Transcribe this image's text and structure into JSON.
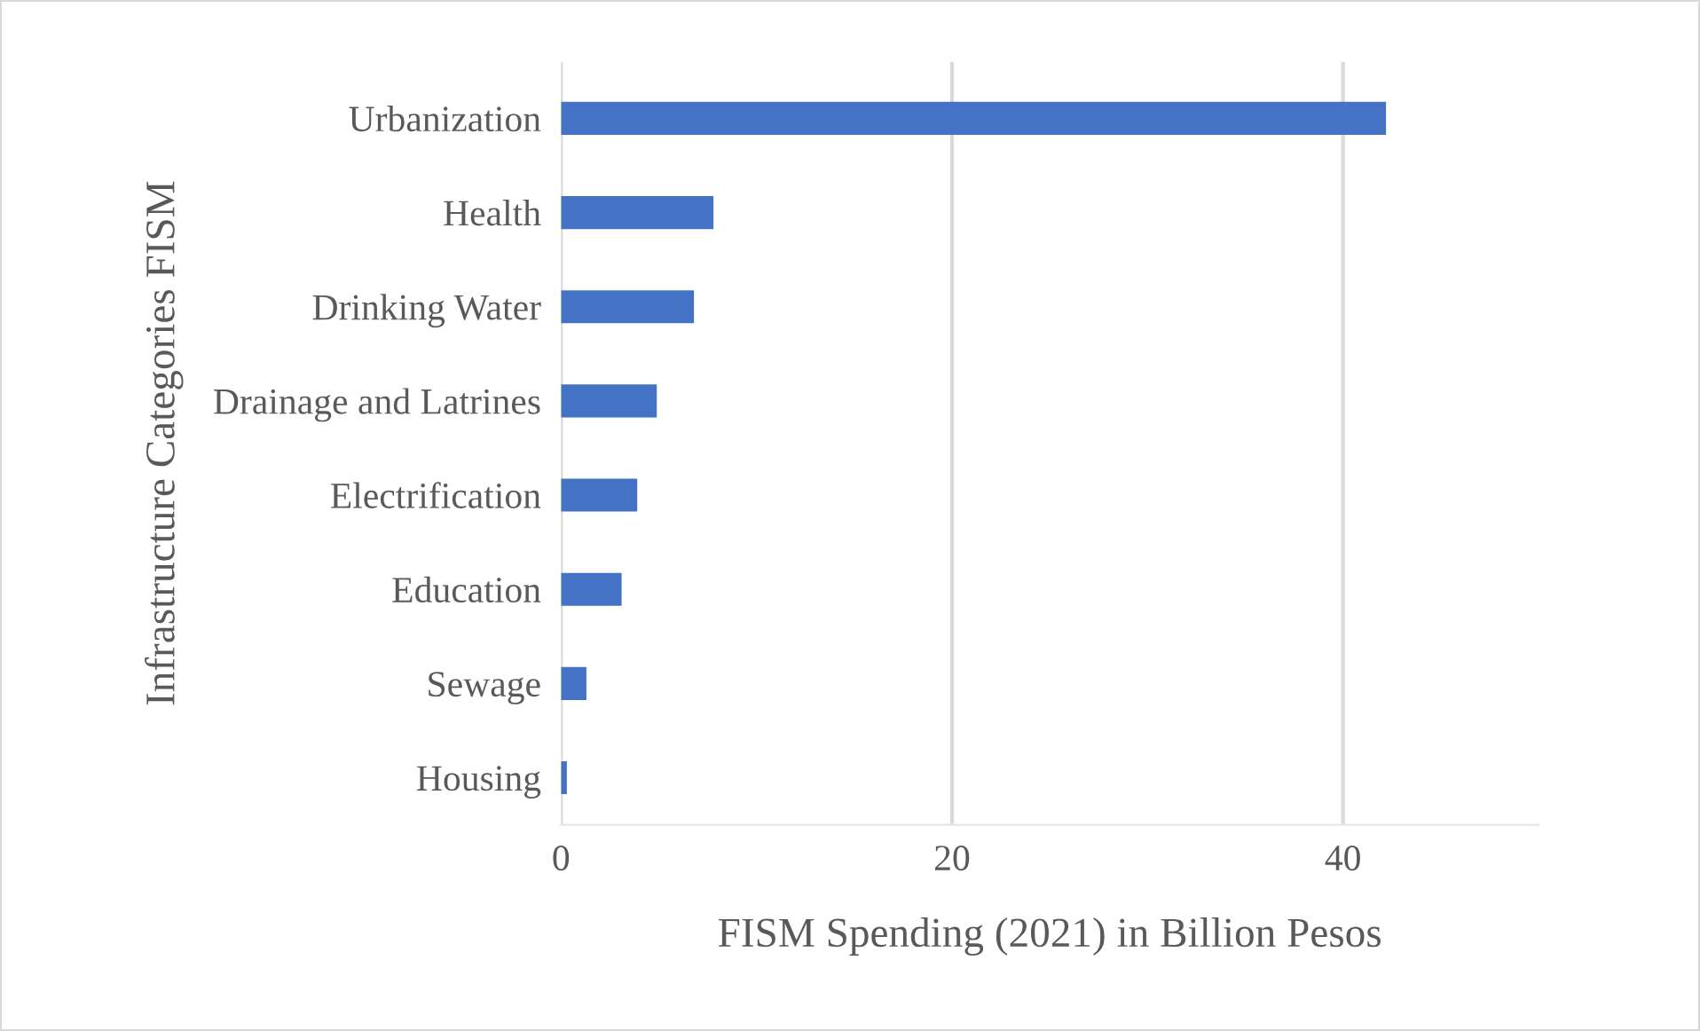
{
  "chart_data": {
    "type": "bar",
    "orientation": "horizontal",
    "xlabel": "FISM Spending (2021) in Billion Pesos",
    "ylabel": "Infrastructure Categories FISM",
    "categories": [
      "Urbanization",
      "Health",
      "Drinking Water",
      "Drainage and Latrines",
      "Electrification",
      "Education",
      "Sewage",
      "Housing"
    ],
    "values": [
      42.2,
      7.8,
      6.8,
      4.9,
      3.9,
      3.1,
      1.3,
      0.3
    ],
    "color": "#4472c4",
    "xlim": [
      0,
      50
    ],
    "xticks": [
      0,
      20,
      40
    ],
    "grid": "x",
    "legend": false
  }
}
